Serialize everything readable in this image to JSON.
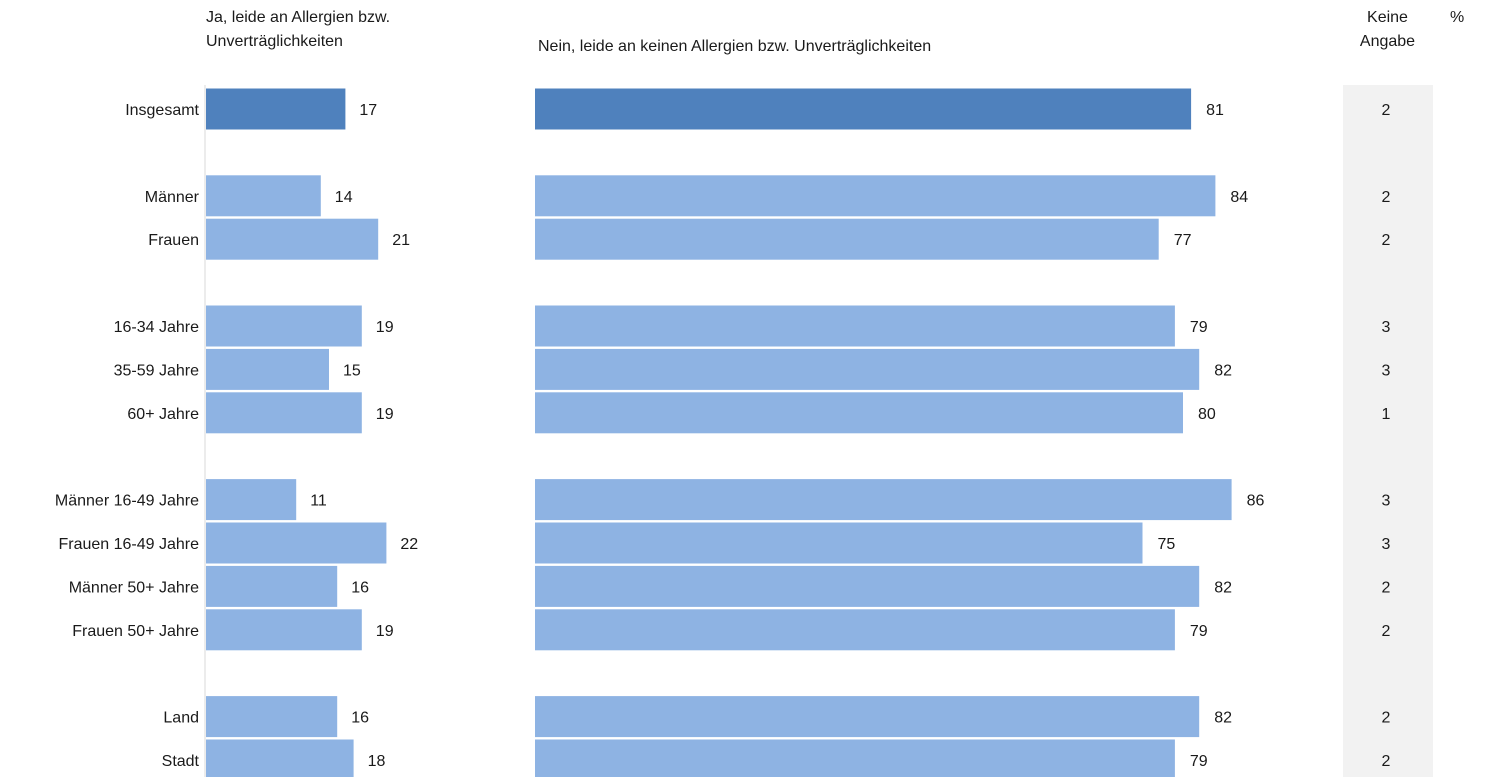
{
  "chart_data": {
    "type": "bar",
    "orientation": "horizontal",
    "unit": "%",
    "colors": {
      "total": "#4f81bd",
      "group": "#8eb3e3",
      "no_answer_bg": "#f2f2f2"
    },
    "columns": {
      "yes": "Ja, leide an Allergien bzw.\nUnverträglichkeiten",
      "no": "Nein, leide an keinen Allergien bzw. Unverträglichkeiten",
      "no_answer": "Keine\nAngabe"
    },
    "categories": [
      "Insgesamt",
      "Männer",
      "Frauen",
      "16-34 Jahre",
      "35-59 Jahre",
      "60+ Jahre",
      "Männer 16-49 Jahre",
      "Frauen 16-49 Jahre",
      "Männer 50+ Jahre",
      "Frauen 50+ Jahre",
      "Land",
      "Stadt"
    ],
    "groups": [
      0,
      1,
      1,
      2,
      2,
      2,
      3,
      3,
      3,
      3,
      4,
      4
    ],
    "series": [
      {
        "name": "Ja, leide an Allergien bzw. Unverträglichkeiten",
        "values": [
          17,
          14,
          21,
          19,
          15,
          19,
          11,
          22,
          16,
          19,
          16,
          18
        ]
      },
      {
        "name": "Nein, leide an keinen Allergien bzw. Unverträglichkeiten",
        "values": [
          81,
          84,
          77,
          79,
          82,
          80,
          86,
          75,
          82,
          79,
          82,
          79
        ]
      },
      {
        "name": "Keine Angabe",
        "values": [
          2,
          2,
          2,
          3,
          3,
          1,
          3,
          3,
          2,
          2,
          2,
          2
        ]
      }
    ]
  }
}
